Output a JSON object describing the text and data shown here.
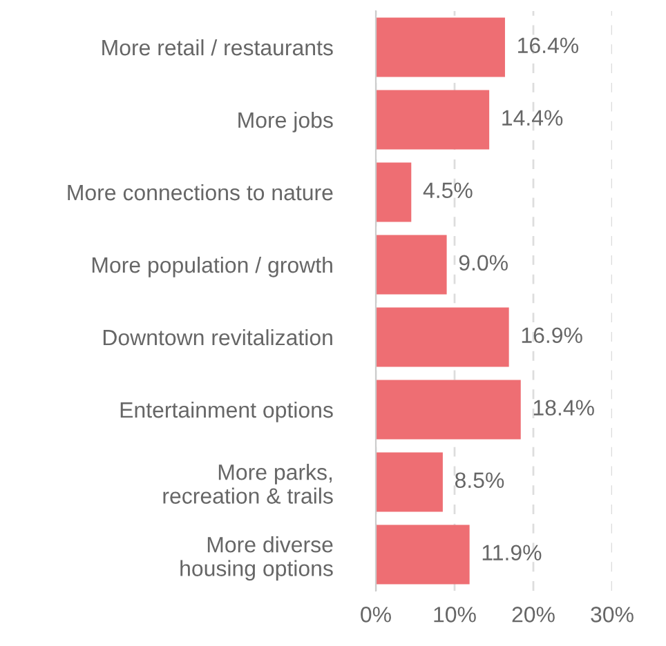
{
  "chart_data": {
    "type": "bar",
    "orientation": "horizontal",
    "categories": [
      "More retail / restaurants",
      "More jobs",
      "More connections to nature",
      "More population / growth",
      "Downtown revitalization",
      "Entertainment options",
      "More parks,\nrecreation & trails",
      "More diverse\nhousing options"
    ],
    "values": [
      16.4,
      14.4,
      4.5,
      9.0,
      16.9,
      18.4,
      8.5,
      11.9
    ],
    "value_labels": [
      "16.4%",
      "14.4%",
      "4.5%",
      "9.0%",
      "16.9%",
      "18.4%",
      "8.5%",
      "11.9%"
    ],
    "color": "#ee6e73",
    "xlim": [
      0,
      30
    ],
    "xticks": [
      {
        "value": 0,
        "label": "0%"
      },
      {
        "value": 10,
        "label": "10%"
      },
      {
        "value": 20,
        "label": "20%"
      },
      {
        "value": 30,
        "label": "30%"
      }
    ],
    "grid": "x",
    "legend": false
  }
}
